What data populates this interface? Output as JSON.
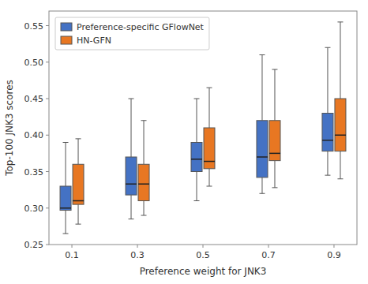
{
  "chart_data": {
    "type": "box",
    "xlabel": "Preference weight for JNK3",
    "ylabel": "Top-100 JNK3 scores",
    "x": [
      0.1,
      0.3,
      0.5,
      0.7,
      0.9
    ],
    "xlim": [
      0.03,
      0.97
    ],
    "xticks": [
      0.1,
      0.3,
      0.5,
      0.7,
      0.9
    ],
    "ylim": [
      0.25,
      0.57
    ],
    "yticks": [
      0.25,
      {
        "value": 0.3,
        "label": "0.30"
      },
      0.35,
      {
        "value": 0.4,
        "label": "0.40"
      },
      0.45,
      {
        "value": 0.5,
        "label": "0.50"
      },
      0.55
    ],
    "grid": false,
    "legend": "upper left",
    "series": [
      {
        "name": "Preference-specific GFlowNet",
        "color": "#4472C4",
        "values": [
          {
            "whislo": 0.265,
            "q1": 0.297,
            "med": 0.3,
            "q3": 0.33,
            "whishi": 0.39
          },
          {
            "whislo": 0.285,
            "q1": 0.318,
            "med": 0.333,
            "q3": 0.37,
            "whishi": 0.45
          },
          {
            "whislo": 0.31,
            "q1": 0.35,
            "med": 0.367,
            "q3": 0.39,
            "whishi": 0.45
          },
          {
            "whislo": 0.32,
            "q1": 0.342,
            "med": 0.37,
            "q3": 0.42,
            "whishi": 0.51
          },
          {
            "whislo": 0.345,
            "q1": 0.378,
            "med": 0.393,
            "q3": 0.43,
            "whishi": 0.52
          }
        ]
      },
      {
        "name": "HN-GFN",
        "color": "#E87722",
        "values": [
          {
            "whislo": 0.278,
            "q1": 0.305,
            "med": 0.31,
            "q3": 0.36,
            "whishi": 0.395
          },
          {
            "whislo": 0.29,
            "q1": 0.31,
            "med": 0.333,
            "q3": 0.36,
            "whishi": 0.42
          },
          {
            "whislo": 0.33,
            "q1": 0.354,
            "med": 0.364,
            "q3": 0.41,
            "whishi": 0.465
          },
          {
            "whislo": 0.328,
            "q1": 0.365,
            "med": 0.375,
            "q3": 0.42,
            "whishi": 0.49
          },
          {
            "whislo": 0.34,
            "q1": 0.378,
            "med": 0.4,
            "q3": 0.45,
            "whishi": 0.555
          }
        ]
      }
    ]
  }
}
